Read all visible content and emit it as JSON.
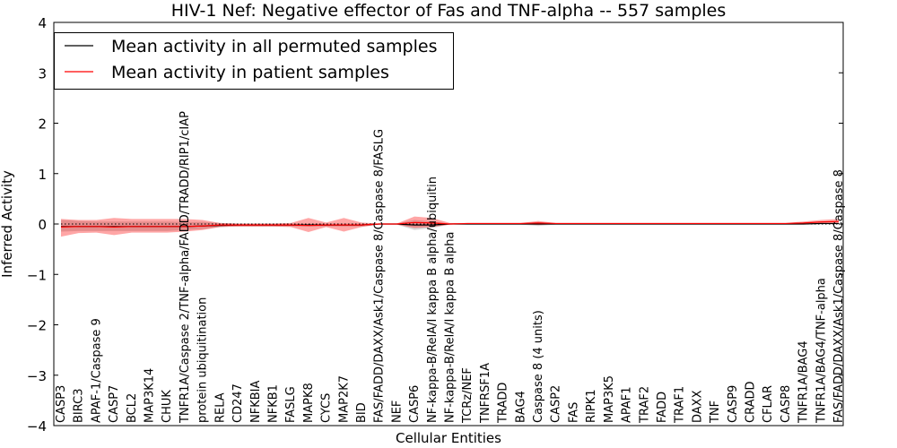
{
  "chart_data": {
    "type": "line",
    "title": "HIV-1 Nef: Negative effector of Fas and TNF-alpha -- 557 samples",
    "xlabel": "Cellular Entities",
    "ylabel": "Inferred Activity",
    "ylim": [
      -4,
      4
    ],
    "yticks": [
      -4,
      -3,
      -2,
      -1,
      0,
      1,
      2,
      3,
      4
    ],
    "ytick_labels": [
      "−4",
      "−3",
      "−2",
      "−1",
      "0",
      "1",
      "2",
      "3",
      "4"
    ],
    "categories": [
      "CASP3",
      "BIRC3",
      "APAF-1/Caspase 9",
      "CASP7",
      "BCL2",
      "MAP3K14",
      "CHUK",
      "TNFR1A/Caspase 2/TNF-alpha/FADD/TRADD/RIP1/cIAP",
      "protein ubiquitination",
      "RELA",
      "CD247",
      "NFKBIA",
      "NFKB1",
      "FASLG",
      "MAPK8",
      "CYCS",
      "MAP2K7",
      "BID",
      "FAS/FADD/DAXX/Ask1/Caspase 8/Caspase 8/FASLG",
      "NEF",
      "CASP6",
      "NF-kappa-B/RelA/I kappa B alpha/ubiquitin",
      "NF-kappa-B/RelA/I kappa B alpha",
      "TCRz/NEF",
      "TNFRSF1A",
      "TRADD",
      "BAG4",
      "Caspase 8 (4 units)",
      "CASP2",
      "FAS",
      "RIPK1",
      "MAP3K5",
      "APAF1",
      "TRAF2",
      "FADD",
      "TRAF1",
      "DAXX",
      "TNF",
      "CASP9",
      "CRADD",
      "CFLAR",
      "CASP8",
      "TNFR1A/BAG4",
      "TNFR1A/BAG4/TNF-alpha",
      "FAS/FADD/DAXX/Ask1/Caspase 8/Caspase 8"
    ],
    "grid": false,
    "legend_position": "top-left",
    "series": [
      {
        "name": "Mean activity in all permuted samples",
        "color": "#000000",
        "values": [
          -0.05,
          -0.05,
          -0.05,
          -0.05,
          -0.05,
          -0.05,
          -0.05,
          -0.05,
          -0.04,
          -0.03,
          -0.02,
          -0.02,
          -0.02,
          -0.02,
          -0.02,
          -0.02,
          -0.02,
          -0.02,
          0,
          0,
          -0.02,
          -0.02,
          0,
          0,
          0,
          0,
          0,
          0,
          0,
          0,
          0,
          0,
          0,
          0,
          0,
          0,
          0,
          0,
          0,
          0,
          0,
          0,
          0,
          0.01,
          0.01
        ],
        "band_upper": [
          0.08,
          0.06,
          0.05,
          0.05,
          0.05,
          0.05,
          0.05,
          0.04,
          0.04,
          0.02,
          0.01,
          0.01,
          0.01,
          0.01,
          0.01,
          0.01,
          0.01,
          0.01,
          0.01,
          0.01,
          0.08,
          0.05,
          0.01,
          0.01,
          0.01,
          0.01,
          0.01,
          0.04,
          0.01,
          0.01,
          0.01,
          0.01,
          0.01,
          0.01,
          0.01,
          0.01,
          0.01,
          0.01,
          0.01,
          0.01,
          0.01,
          0.01,
          0.01,
          0.02,
          0.02
        ],
        "band_lower": [
          -0.15,
          -0.14,
          -0.14,
          -0.14,
          -0.14,
          -0.14,
          -0.14,
          -0.12,
          -0.1,
          -0.06,
          -0.05,
          -0.05,
          -0.05,
          -0.05,
          -0.05,
          -0.05,
          -0.05,
          -0.05,
          -0.01,
          -0.01,
          -0.12,
          -0.08,
          -0.01,
          -0.01,
          -0.01,
          -0.01,
          -0.01,
          -0.04,
          -0.01,
          -0.01,
          -0.01,
          -0.01,
          -0.01,
          -0.01,
          -0.01,
          -0.01,
          -0.01,
          -0.01,
          -0.01,
          -0.01,
          -0.01,
          -0.01,
          -0.01,
          -0.01,
          -0.01
        ]
      },
      {
        "name": "Mean activity in patient samples",
        "color": "#ff0000",
        "values": [
          -0.06,
          -0.05,
          -0.05,
          -0.06,
          -0.05,
          -0.05,
          -0.05,
          -0.05,
          -0.04,
          -0.02,
          -0.02,
          -0.02,
          -0.02,
          -0.02,
          -0.03,
          -0.02,
          -0.02,
          -0.02,
          0,
          0,
          0.03,
          0.02,
          0,
          0.01,
          0.01,
          0.01,
          0.01,
          0.02,
          0.01,
          0.01,
          0.01,
          0.01,
          0.01,
          0.01,
          0.01,
          0.01,
          0.01,
          0.01,
          0.01,
          0.01,
          0.01,
          0.01,
          0.02,
          0.04,
          0.05
        ],
        "band_upper": [
          0.1,
          0.08,
          0.08,
          0.12,
          0.1,
          0.1,
          0.1,
          0.1,
          0.08,
          0.02,
          0.01,
          0.01,
          0.01,
          0.02,
          0.12,
          0.03,
          0.12,
          0.03,
          0.01,
          0.01,
          0.15,
          0.12,
          0.02,
          0.02,
          0.02,
          0.02,
          0.02,
          0.06,
          0.02,
          0.02,
          0.02,
          0.02,
          0.02,
          0.02,
          0.02,
          0.02,
          0.02,
          0.02,
          0.02,
          0.02,
          0.02,
          0.02,
          0.05,
          0.08,
          0.1
        ],
        "band_lower": [
          -0.25,
          -0.18,
          -0.17,
          -0.22,
          -0.17,
          -0.17,
          -0.17,
          -0.15,
          -0.12,
          -0.06,
          -0.05,
          -0.05,
          -0.05,
          -0.06,
          -0.16,
          -0.06,
          -0.15,
          -0.06,
          -0.01,
          -0.01,
          -0.08,
          -0.06,
          -0.01,
          0,
          0,
          0,
          0,
          -0.02,
          0,
          0,
          0,
          0,
          0,
          0,
          0,
          0,
          0,
          0,
          0,
          0,
          0,
          0,
          0,
          0.01,
          0.02
        ]
      }
    ],
    "reference_line": {
      "y": 0,
      "style": "dotted",
      "color": "#000000"
    }
  }
}
